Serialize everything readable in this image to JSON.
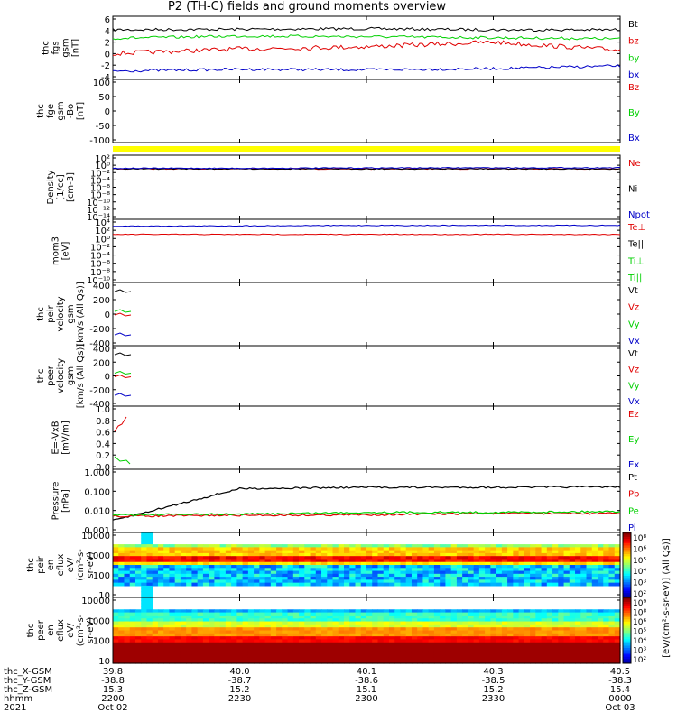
{
  "title": "P2 (TH-C) fields and ground moments overview",
  "colors": {
    "black": "#000000",
    "red": "#e00000",
    "green": "#00d000",
    "blue": "#0000c8",
    "yellow": "#ffff00"
  },
  "panels": [
    {
      "id": "fgs",
      "ylabel": [
        "thc",
        "fgs",
        "gsm",
        "[nT]"
      ],
      "ticks": [
        "6",
        "4",
        "2",
        "0",
        "-2",
        "-4"
      ],
      "legend": [
        {
          "text": "Bt",
          "color": "black"
        },
        {
          "text": "bz",
          "color": "red"
        },
        {
          "text": "by",
          "color": "green"
        },
        {
          "text": "bx",
          "color": "blue"
        }
      ]
    },
    {
      "id": "fge",
      "ylabel": [
        "thc",
        "fge",
        "gsm",
        "-Bo",
        "[nT]"
      ],
      "ticks": [
        "100",
        "50",
        "0",
        "-50",
        "-100"
      ],
      "legend": [
        {
          "text": "Bz",
          "color": "red"
        },
        {
          "text": "By",
          "color": "green"
        },
        {
          "text": "Bx",
          "color": "blue"
        }
      ]
    },
    {
      "id": "density",
      "ylabel": [
        "Density",
        "[1/cc]",
        "[cm-3]"
      ],
      "ticks": [
        "10²",
        "10⁰",
        "10⁻²",
        "10⁻⁴",
        "10⁻⁶",
        "10⁻⁸",
        "10⁻¹⁰",
        "10⁻¹²",
        "10⁻¹⁴"
      ],
      "legend": [
        {
          "text": "Ne",
          "color": "red"
        },
        {
          "text": "Ni",
          "color": "black"
        },
        {
          "text": "Npot",
          "color": "blue"
        }
      ]
    },
    {
      "id": "temp",
      "ylabel": [
        "mom3",
        "[eV]"
      ],
      "ticks": [
        "10⁴",
        "10²",
        "10⁰",
        "10⁻²",
        "10⁻⁴",
        "10⁻⁶",
        "10⁻⁸",
        "10⁻¹⁰"
      ],
      "legend": [
        {
          "text": "Te⊥",
          "color": "red"
        },
        {
          "text": "Te||",
          "color": "black"
        },
        {
          "text": "Ti⊥",
          "color": "green"
        },
        {
          "text": "Ti||",
          "color": "green"
        }
      ]
    },
    {
      "id": "vi",
      "ylabel": [
        "thc",
        "peir",
        "velocity",
        "gsm",
        "[km/s (All Qs)]"
      ],
      "ticks": [
        "400",
        "200",
        "0",
        "-200",
        "-400"
      ],
      "legend": [
        {
          "text": "Vt",
          "color": "black"
        },
        {
          "text": "Vz",
          "color": "red"
        },
        {
          "text": "Vy",
          "color": "green"
        },
        {
          "text": "Vx",
          "color": "blue"
        }
      ]
    },
    {
      "id": "ve",
      "ylabel": [
        "thc",
        "peer",
        "velocity",
        "gsm",
        "[km/s (All Qs)]"
      ],
      "ticks": [
        "400",
        "200",
        "0",
        "-200",
        "-400"
      ],
      "legend": [
        {
          "text": "Vt",
          "color": "black"
        },
        {
          "text": "Vz",
          "color": "red"
        },
        {
          "text": "Vy",
          "color": "green"
        },
        {
          "text": "Vx",
          "color": "blue"
        }
      ]
    },
    {
      "id": "exb",
      "ylabel": [
        "E=-VxB",
        "[mV/m]"
      ],
      "ticks": [
        "1.0",
        "0.8",
        "0.6",
        "0.4",
        "0.2",
        "0.0"
      ],
      "legend": [
        {
          "text": "Ez",
          "color": "red"
        },
        {
          "text": "Ey",
          "color": "green"
        },
        {
          "text": "Ex",
          "color": "blue"
        }
      ]
    },
    {
      "id": "pressure",
      "ylabel": [
        "Pressure",
        "[nPa]"
      ],
      "ticks": [
        "1.000",
        "0.100",
        "0.010",
        "0.001"
      ],
      "legend": [
        {
          "text": "Pt",
          "color": "black"
        },
        {
          "text": "Pb",
          "color": "red"
        },
        {
          "text": "Pe",
          "color": "green"
        },
        {
          "text": "Pi",
          "color": "blue"
        }
      ]
    },
    {
      "id": "ispec",
      "ylabel": [
        "thc",
        "peir",
        "en",
        "eflux",
        "eV/",
        "(cm²-s-",
        "sr-eV)"
      ],
      "ticks": [
        "10000",
        "1000",
        "100",
        "10"
      ],
      "colorbar": [
        "10⁸",
        "10⁶",
        "10⁵",
        "10⁴",
        "10³",
        "10²"
      ]
    },
    {
      "id": "espec",
      "ylabel": [
        "thc",
        "peer",
        "en",
        "eflux",
        "eV/",
        "(cm²-s-",
        "sr-eV)"
      ],
      "ticks": [
        "10000",
        "1000",
        "100",
        "10"
      ],
      "colorbar": [
        "10⁹",
        "10⁸",
        "10⁶",
        "10⁵",
        "10⁴",
        "10³",
        "10²"
      ]
    }
  ],
  "colorbar_label": "[eV/(cm²-s-sr-eV)] (All Qs)]",
  "xaxis": {
    "row_labels": [
      "thc_X-GSM",
      "thc_Y-GSM",
      "thc_Z-GSM",
      "hhmm",
      "2021"
    ],
    "columns": [
      {
        "values": [
          "39.8",
          "-38.8",
          "15.3",
          "2200",
          "Oct 02"
        ]
      },
      {
        "values": [
          "40.0",
          "-38.7",
          "15.2",
          "2230",
          ""
        ]
      },
      {
        "values": [
          "40.1",
          "-38.6",
          "15.1",
          "2300",
          ""
        ]
      },
      {
        "values": [
          "40.3",
          "-38.5",
          "15.2",
          "2330",
          ""
        ]
      },
      {
        "values": [
          "40.5",
          "-38.3",
          "15.4",
          "0000",
          "Oct 03"
        ]
      }
    ]
  },
  "chart_data": {
    "type": "line",
    "title": "P2 (TH-C) fields and ground moments overview",
    "x": [
      "2200",
      "2230",
      "2300",
      "2330",
      "0000"
    ],
    "xlabel": "hhmm",
    "panels": [
      {
        "name": "fgs",
        "ylim": [
          -4.8,
          6.4
        ],
        "series": [
          {
            "name": "Bt",
            "values": [
              4.0,
              4.1,
              4.2,
              4.0,
              4.0
            ]
          },
          {
            "name": "bz",
            "values": [
              -0.2,
              0.6,
              1.0,
              1.8,
              0.4
            ]
          },
          {
            "name": "by",
            "values": [
              2.5,
              2.9,
              2.8,
              2.6,
              2.4
            ]
          },
          {
            "name": "bx",
            "values": [
              -3.3,
              -3.0,
              -3.1,
              -2.9,
              -2.4
            ]
          }
        ]
      },
      {
        "name": "density",
        "log": true,
        "series": [
          {
            "name": "Ne",
            "values": [
              0.1,
              0.1,
              0.1,
              0.1,
              0.1
            ]
          },
          {
            "name": "Ni",
            "values": [
              0.1,
              0.1,
              0.1,
              0.1,
              0.1
            ]
          },
          {
            "name": "Npot",
            "values": [
              0.15,
              0.15,
              0.18,
              0.2,
              0.2
            ]
          }
        ]
      },
      {
        "name": "temperature",
        "log": true,
        "series": [
          {
            "name": "Te⊥",
            "values": [
              10,
              10,
              10,
              10,
              10
            ]
          },
          {
            "name": "Ti⊥",
            "values": [
              1000,
              1200,
              1500,
              1500,
              1500
            ]
          }
        ]
      },
      {
        "name": "pressure",
        "log": true,
        "ylim": [
          0.001,
          1.0
        ],
        "series": [
          {
            "name": "Pt",
            "values": [
              0.003,
              0.17,
              0.16,
              0.16,
              0.17
            ]
          },
          {
            "name": "Pb",
            "values": [
              0.005,
              0.007,
              0.006,
              0.007,
              0.007
            ]
          },
          {
            "name": "Pe",
            "values": [
              0.006,
              0.008,
              0.008,
              0.008,
              0.009
            ]
          }
        ]
      }
    ]
  }
}
